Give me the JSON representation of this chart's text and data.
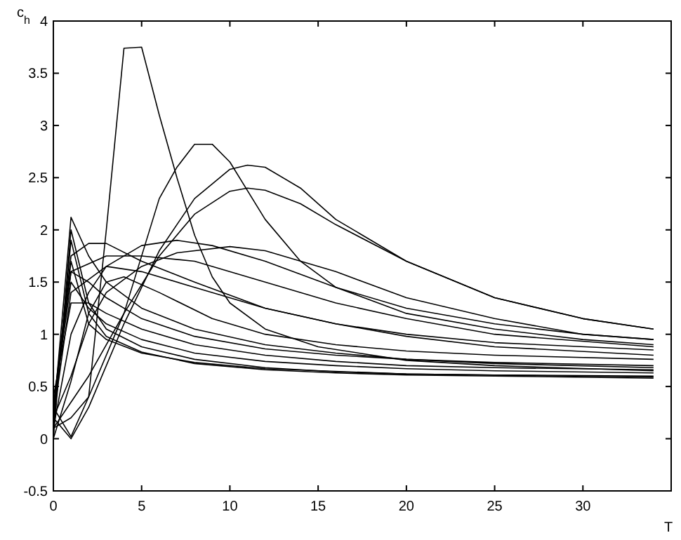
{
  "chart_data": {
    "type": "line",
    "xlabel": "T",
    "ylabel": "c$_{h}$",
    "xlim": [
      0,
      35
    ],
    "ylim": [
      -0.5,
      4
    ],
    "xticks": [
      0,
      5,
      10,
      15,
      20,
      25,
      30
    ],
    "yticks": [
      -0.5,
      0,
      0.5,
      1,
      1.5,
      2,
      2.5,
      3,
      3.5,
      4
    ],
    "grid": false,
    "marker": "none",
    "line_style": "solid",
    "series": [
      {
        "color": "#000000",
        "x": [
          0,
          1,
          2,
          3,
          4,
          5,
          6,
          7,
          8,
          9,
          10,
          12,
          15,
          20,
          25,
          34
        ],
        "values": [
          0.3,
          0.02,
          0.4,
          2.0,
          3.74,
          3.75,
          3.1,
          2.5,
          1.95,
          1.55,
          1.3,
          1.05,
          0.88,
          0.75,
          0.7,
          0.65
        ]
      },
      {
        "color": "#000000",
        "x": [
          0,
          1,
          2,
          4,
          6,
          7,
          8,
          9,
          10,
          12,
          14,
          16,
          20,
          25,
          30,
          34
        ],
        "values": [
          0.1,
          0.35,
          0.6,
          1.2,
          2.3,
          2.6,
          2.82,
          2.82,
          2.65,
          2.1,
          1.7,
          1.45,
          1.2,
          1.05,
          0.95,
          0.9
        ]
      },
      {
        "color": "#000000",
        "x": [
          0,
          1,
          2,
          4,
          6,
          8,
          10,
          11,
          12,
          14,
          16,
          20,
          25,
          30,
          34
        ],
        "values": [
          0.2,
          0.0,
          0.3,
          1.1,
          1.8,
          2.3,
          2.58,
          2.62,
          2.6,
          2.4,
          2.1,
          1.7,
          1.35,
          1.15,
          1.05
        ]
      },
      {
        "color": "#000000",
        "x": [
          0,
          1,
          2,
          4,
          6,
          8,
          10,
          11,
          12,
          14,
          16,
          20,
          25,
          30,
          34
        ],
        "values": [
          0.1,
          0.2,
          0.4,
          1.2,
          1.75,
          2.15,
          2.37,
          2.4,
          2.38,
          2.25,
          2.05,
          1.7,
          1.35,
          1.15,
          1.05
        ]
      },
      {
        "color": "#000000",
        "x": [
          0,
          1,
          2,
          3,
          5,
          7,
          9,
          12,
          16,
          20,
          25,
          30,
          34
        ],
        "values": [
          0.1,
          1.0,
          1.4,
          1.65,
          1.85,
          1.9,
          1.85,
          1.7,
          1.45,
          1.25,
          1.1,
          1.0,
          0.95
        ]
      },
      {
        "color": "#000000",
        "x": [
          0,
          1,
          2,
          3,
          5,
          7,
          10,
          12,
          16,
          20,
          25,
          30,
          34
        ],
        "values": [
          0.2,
          0.6,
          1.1,
          1.4,
          1.65,
          1.78,
          1.84,
          1.8,
          1.6,
          1.35,
          1.15,
          1.0,
          0.95
        ]
      },
      {
        "color": "#000000",
        "x": [
          0,
          1,
          2,
          3,
          5,
          8,
          12,
          16,
          20,
          25,
          34
        ],
        "values": [
          0.3,
          1.75,
          1.87,
          1.87,
          1.7,
          1.5,
          1.25,
          1.1,
          1.0,
          0.92,
          0.85
        ]
      },
      {
        "color": "#000000",
        "x": [
          0,
          1,
          3,
          5,
          8,
          12,
          16,
          20,
          25,
          34
        ],
        "values": [
          0.3,
          1.6,
          1.75,
          1.75,
          1.7,
          1.5,
          1.3,
          1.15,
          1.0,
          0.88
        ]
      },
      {
        "color": "#000000",
        "x": [
          0,
          1,
          3,
          5,
          8,
          12,
          16,
          20,
          25,
          34
        ],
        "values": [
          0.2,
          1.4,
          1.65,
          1.6,
          1.45,
          1.25,
          1.1,
          0.98,
          0.88,
          0.8
        ]
      },
      {
        "color": "#000000",
        "x": [
          0,
          1,
          2,
          3,
          5,
          8,
          12,
          16,
          20,
          25,
          34
        ],
        "values": [
          0.2,
          2.12,
          1.75,
          1.5,
          1.25,
          1.05,
          0.9,
          0.82,
          0.76,
          0.72,
          0.68
        ]
      },
      {
        "color": "#000000",
        "x": [
          0,
          1,
          2,
          3,
          5,
          8,
          12,
          16,
          20,
          25,
          34
        ],
        "values": [
          0.0,
          2.0,
          1.3,
          1.05,
          0.88,
          0.76,
          0.68,
          0.64,
          0.62,
          0.61,
          0.6
        ]
      },
      {
        "color": "#000000",
        "x": [
          0,
          1,
          2,
          3,
          5,
          8,
          12,
          16,
          20,
          25,
          34
        ],
        "values": [
          0.1,
          1.9,
          1.2,
          0.98,
          0.83,
          0.72,
          0.66,
          0.63,
          0.61,
          0.6,
          0.58
        ]
      },
      {
        "color": "#000000",
        "x": [
          0,
          1,
          2,
          3,
          5,
          8,
          12,
          20,
          34
        ],
        "values": [
          0.2,
          1.7,
          1.1,
          0.95,
          0.82,
          0.73,
          0.67,
          0.62,
          0.59
        ]
      },
      {
        "color": "#000000",
        "x": [
          0,
          1,
          2,
          3,
          5,
          8,
          12,
          16,
          20,
          25,
          34
        ],
        "values": [
          0.3,
          1.5,
          1.25,
          1.1,
          0.95,
          0.82,
          0.74,
          0.7,
          0.67,
          0.65,
          0.63
        ]
      },
      {
        "color": "#000000",
        "x": [
          0,
          1,
          2,
          3,
          5,
          8,
          12,
          16,
          20,
          25,
          34
        ],
        "values": [
          0.4,
          1.3,
          1.3,
          1.2,
          1.05,
          0.9,
          0.8,
          0.74,
          0.7,
          0.68,
          0.66
        ]
      },
      {
        "color": "#000000",
        "x": [
          0,
          1,
          2,
          3,
          5,
          8,
          12,
          16,
          20,
          25,
          34
        ],
        "values": [
          0.3,
          1.6,
          1.5,
          1.35,
          1.15,
          0.98,
          0.86,
          0.8,
          0.76,
          0.73,
          0.7
        ]
      },
      {
        "color": "#000000",
        "x": [
          0,
          1,
          2,
          3,
          4,
          6,
          9,
          12,
          16,
          20,
          25,
          34
        ],
        "values": [
          0.0,
          0.55,
          1.2,
          1.5,
          1.55,
          1.4,
          1.15,
          1.0,
          0.9,
          0.84,
          0.8,
          0.76
        ]
      }
    ]
  }
}
